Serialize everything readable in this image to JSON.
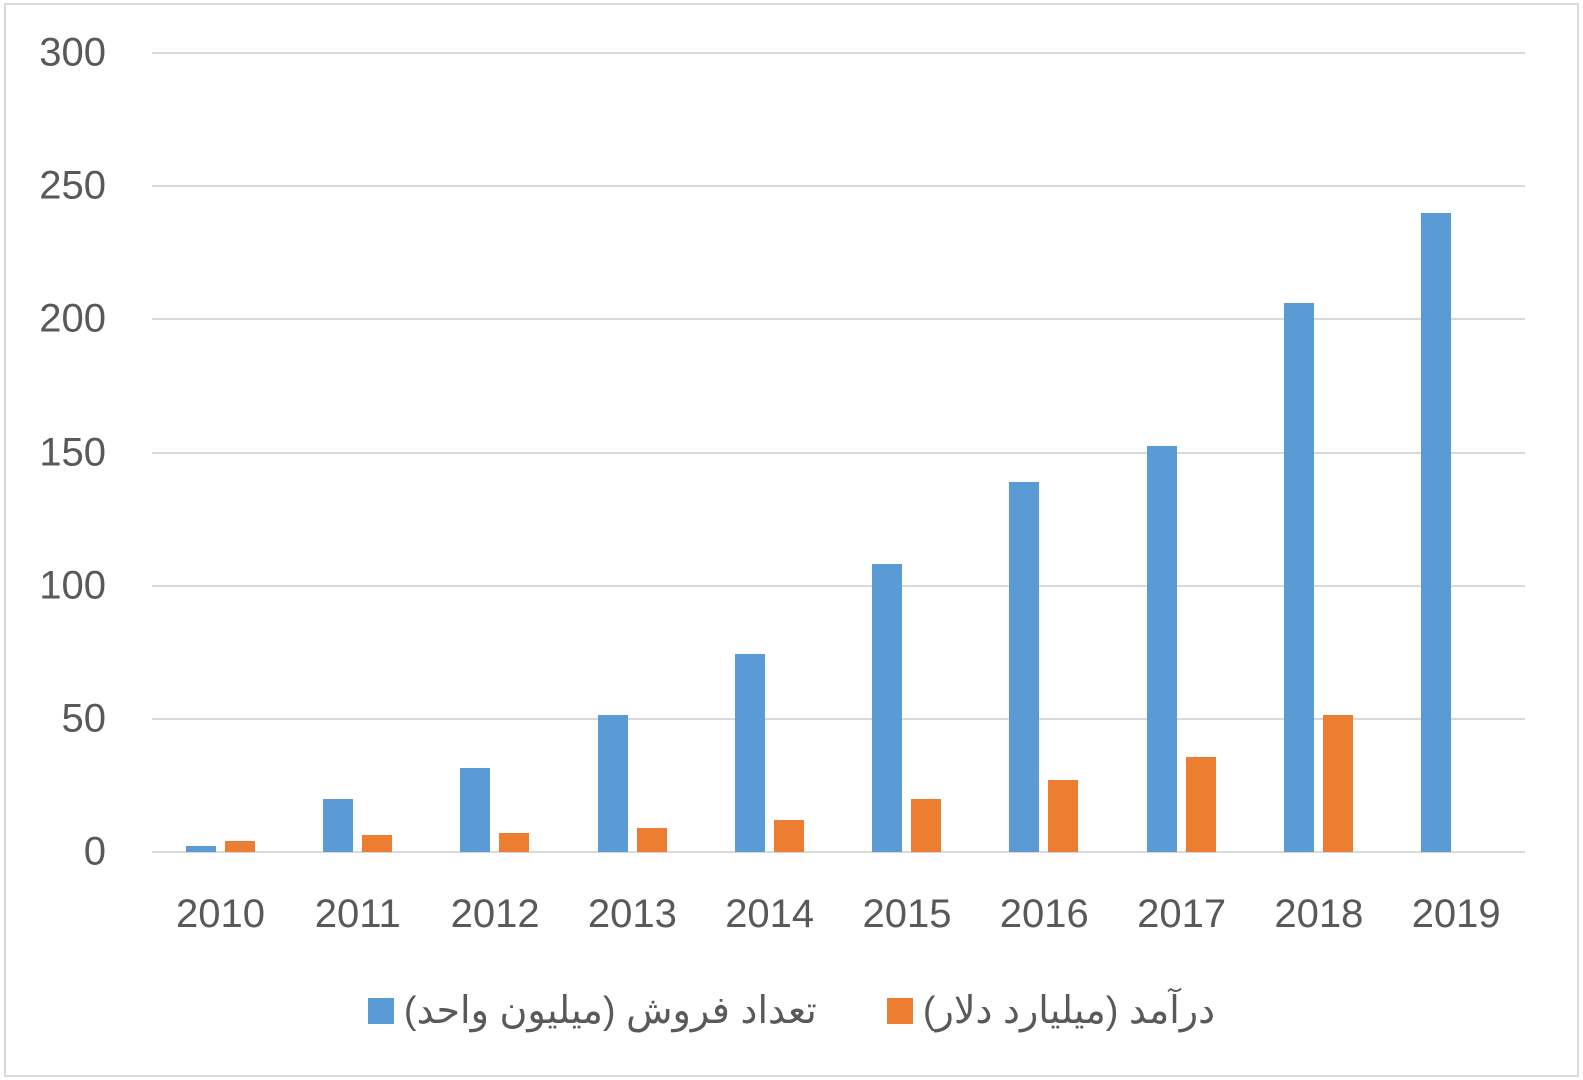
{
  "chart_data": {
    "type": "bar",
    "title": "",
    "xlabel": "",
    "ylabel": "",
    "ylim": [
      0,
      300
    ],
    "yticks": [
      0,
      50,
      100,
      150,
      200,
      250,
      300
    ],
    "grid": true,
    "legend_position": "bottom",
    "categories": [
      "2010",
      "2011",
      "2012",
      "2013",
      "2014",
      "2015",
      "2016",
      "2017",
      "2018",
      "2019"
    ],
    "series": [
      {
        "name": "تعداد فروش (میلیون واحد)",
        "color": "#5b9bd5",
        "values": [
          2.3,
          20,
          31.5,
          51.5,
          74.5,
          108,
          139,
          152.5,
          206,
          240
        ]
      },
      {
        "name": "درآمد (میلیارد دلار)",
        "color": "#ed7d31",
        "values": [
          4,
          6.5,
          7,
          9,
          12,
          20,
          27,
          35.5,
          51.5,
          null
        ]
      }
    ]
  },
  "axis": {
    "y_labels": [
      "0",
      "50",
      "100",
      "150",
      "200",
      "250",
      "300"
    ]
  },
  "legend": {
    "items": [
      {
        "label": "تعداد فروش (میلیون واحد)",
        "color": "#5b9bd5"
      },
      {
        "label": "درآمد (میلیارد دلار)",
        "color": "#ed7d31"
      }
    ]
  }
}
